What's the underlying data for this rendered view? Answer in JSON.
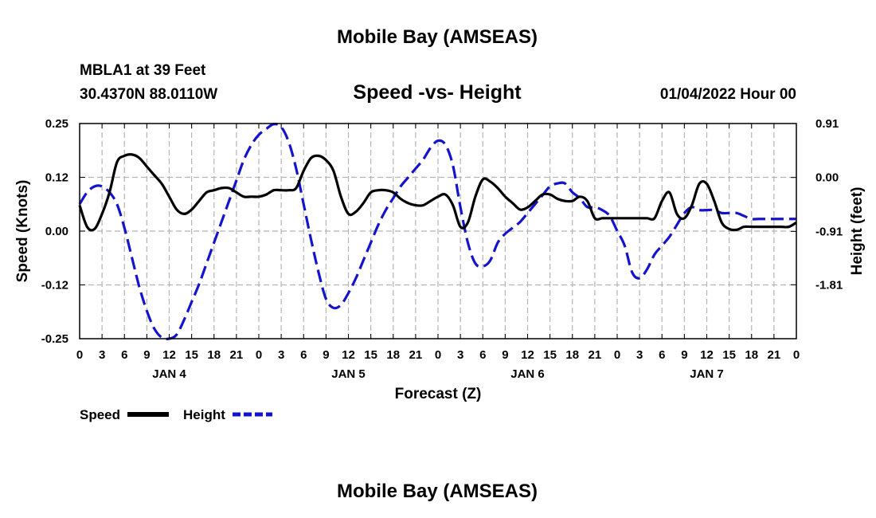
{
  "header": {
    "title": "Mobile Bay (AMSEAS)",
    "station": "MBLA1 at 39 Feet",
    "coords": "30.4370N  88.0110W",
    "subtitle": "Speed -vs- Height",
    "datetime": "01/04/2022 Hour 00"
  },
  "footer": {
    "title_repeat": "Mobile Bay (AMSEAS)"
  },
  "chart_data": {
    "type": "line",
    "title": "Speed -vs- Height",
    "xlabel": "Forecast (Z)",
    "ylabel": "Speed (Knots)",
    "y2label": "Height (feet)",
    "x_unit": "hours from 01/04/2022 00Z",
    "xlim": [
      0,
      96
    ],
    "ylim": [
      -0.25,
      0.25
    ],
    "y2lim": [
      -2.72,
      0.91
    ],
    "grid": true,
    "legend_position": "bottom-left",
    "x_tick_labels": [
      "0",
      "3",
      "6",
      "9",
      "12",
      "15",
      "18",
      "21",
      "0",
      "3",
      "6",
      "9",
      "12",
      "15",
      "18",
      "21",
      "0",
      "3",
      "6",
      "9",
      "12",
      "15",
      "18",
      "21",
      "0",
      "3",
      "6",
      "9",
      "12",
      "15",
      "18",
      "21",
      "0"
    ],
    "day_labels": [
      {
        "label": "JAN 4",
        "at": 12
      },
      {
        "label": "JAN 5",
        "at": 36
      },
      {
        "label": "JAN 6",
        "at": 60
      },
      {
        "label": "JAN 7",
        "at": 84
      }
    ],
    "y_tick_labels": [
      "0.25",
      "0.12",
      "0.00",
      "-0.12",
      "-0.25"
    ],
    "y_tick_values": [
      0.25,
      0.125,
      0.0,
      -0.125,
      -0.25
    ],
    "y2_tick_labels": [
      "0.91",
      "0.00",
      "-0.91",
      "-1.81"
    ],
    "y2_tick_values": [
      0.91,
      0.0,
      -0.91,
      -1.81
    ],
    "series": [
      {
        "name": "Speed",
        "axis": "left",
        "color": "#000000",
        "style": "solid",
        "x": [
          0,
          1,
          2,
          3,
          4,
          5,
          6,
          7,
          8,
          9,
          10,
          11,
          12,
          13,
          14,
          15,
          16,
          17,
          18,
          19,
          20,
          21,
          22,
          23,
          24,
          25,
          26,
          27,
          28,
          29,
          30,
          31,
          32,
          33,
          34,
          35,
          36,
          37,
          38,
          39,
          40,
          41,
          42,
          43,
          44,
          45,
          46,
          47,
          48,
          49,
          50,
          51,
          52,
          53,
          54,
          55,
          56,
          57,
          58,
          59,
          60,
          61,
          62,
          63,
          64,
          65,
          66,
          67,
          68,
          69,
          70,
          71,
          72,
          73,
          74,
          75,
          76,
          77,
          78,
          79,
          80,
          81,
          82,
          83,
          84,
          85,
          86,
          87,
          88,
          89,
          90,
          91,
          92,
          93,
          94,
          95,
          96
        ],
        "values": [
          0.06,
          0.01,
          0.005,
          0.04,
          0.09,
          0.16,
          0.175,
          0.178,
          0.17,
          0.15,
          0.13,
          0.11,
          0.08,
          0.05,
          0.04,
          0.05,
          0.07,
          0.09,
          0.095,
          0.1,
          0.1,
          0.09,
          0.08,
          0.08,
          0.08,
          0.085,
          0.095,
          0.095,
          0.095,
          0.1,
          0.14,
          0.17,
          0.175,
          0.165,
          0.14,
          0.08,
          0.04,
          0.045,
          0.065,
          0.09,
          0.095,
          0.095,
          0.09,
          0.075,
          0.065,
          0.06,
          0.06,
          0.07,
          0.08,
          0.085,
          0.06,
          0.01,
          0.02,
          0.08,
          0.12,
          0.115,
          0.1,
          0.08,
          0.065,
          0.05,
          0.055,
          0.07,
          0.085,
          0.085,
          0.075,
          0.07,
          0.07,
          0.08,
          0.07,
          0.03,
          0.03,
          0.03,
          0.03,
          0.03,
          0.03,
          0.03,
          0.03,
          0.03,
          0.07,
          0.09,
          0.04,
          0.03,
          0.06,
          0.11,
          0.11,
          0.07,
          0.02,
          0.005,
          0.003,
          0.01,
          0.01,
          0.01,
          0.01,
          0.01,
          0.01,
          0.01,
          0.02
        ]
      },
      {
        "name": "Height",
        "axis": "right",
        "color": "#1414cc",
        "style": "dashed",
        "x": [
          0,
          1,
          2,
          3,
          4,
          5,
          6,
          7,
          8,
          9,
          10,
          11,
          12,
          13,
          14,
          15,
          16,
          17,
          18,
          19,
          20,
          21,
          22,
          23,
          24,
          25,
          26,
          27,
          28,
          29,
          30,
          31,
          32,
          33,
          34,
          35,
          36,
          37,
          38,
          39,
          40,
          41,
          42,
          43,
          44,
          45,
          46,
          47,
          48,
          49,
          50,
          51,
          52,
          53,
          54,
          55,
          56,
          57,
          58,
          59,
          60,
          61,
          62,
          63,
          64,
          65,
          66,
          67,
          68,
          69,
          70,
          71,
          72,
          73,
          74,
          75,
          76,
          77,
          78,
          79,
          80,
          81,
          82,
          83,
          84,
          85,
          86,
          87,
          88,
          89,
          90,
          91,
          92,
          93,
          94,
          95,
          96
        ],
        "values": [
          -0.45,
          -0.25,
          -0.15,
          -0.15,
          -0.25,
          -0.45,
          -0.85,
          -1.35,
          -1.85,
          -2.25,
          -2.55,
          -2.7,
          -2.72,
          -2.65,
          -2.4,
          -2.1,
          -1.8,
          -1.45,
          -1.1,
          -0.75,
          -0.4,
          -0.05,
          0.3,
          0.55,
          0.72,
          0.82,
          0.9,
          0.85,
          0.6,
          0.15,
          -0.45,
          -1.05,
          -1.6,
          -2.05,
          -2.2,
          -2.15,
          -1.95,
          -1.7,
          -1.4,
          -1.1,
          -0.8,
          -0.55,
          -0.35,
          -0.15,
          0.0,
          0.15,
          0.3,
          0.5,
          0.62,
          0.55,
          0.2,
          -0.5,
          -1.1,
          -1.45,
          -1.5,
          -1.4,
          -1.1,
          -0.95,
          -0.85,
          -0.75,
          -0.6,
          -0.45,
          -0.3,
          -0.15,
          -0.1,
          -0.1,
          -0.25,
          -0.35,
          -0.5,
          -0.5,
          -0.55,
          -0.65,
          -0.9,
          -1.15,
          -1.6,
          -1.7,
          -1.55,
          -1.3,
          -1.15,
          -1.0,
          -0.8,
          -0.6,
          -0.5,
          -0.55,
          -0.55,
          -0.55,
          -0.6,
          -0.6,
          -0.6,
          -0.65,
          -0.7,
          -0.7,
          -0.7,
          -0.7,
          -0.7,
          -0.7,
          -0.7
        ]
      }
    ]
  }
}
